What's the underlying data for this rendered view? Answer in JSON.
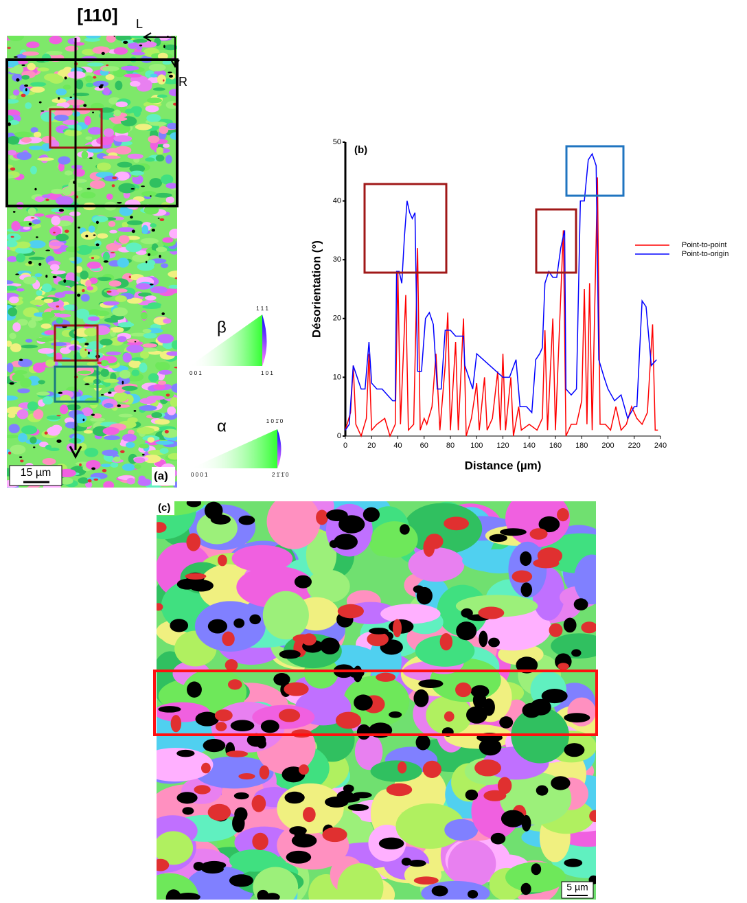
{
  "panel_a": {
    "direction": "[110]",
    "arrow_left": "L",
    "arrow_right": "R",
    "scale": "15 µm",
    "label": "(a)"
  },
  "legend_beta": {
    "symbol": "β",
    "top": "1 1 1",
    "left": "0 0 1",
    "right": "1 0 1"
  },
  "legend_alpha": {
    "symbol": "α",
    "top": "1 0 1̄ 0",
    "left": "0 0 0 1",
    "right": "2 1̄ 1̄ 0"
  },
  "panel_c": {
    "label": "(c)",
    "scale": "5 µm"
  },
  "chart_data": {
    "type": "line",
    "title": "(b)",
    "x_label": "Distance (µm)",
    "y_label": "Désorientation (°)",
    "xlim": [
      0,
      240
    ],
    "xticks": [
      0,
      20,
      40,
      60,
      80,
      100,
      120,
      140,
      160,
      180,
      200,
      220,
      240
    ],
    "ylim": [
      0,
      50
    ],
    "yticks": [
      0,
      10,
      20,
      30,
      40,
      50
    ],
    "series": [
      {
        "name": "Point-to-point",
        "color": "#ff0000",
        "x": [
          0,
          4,
          6,
          8,
          12,
          16,
          18,
          20,
          24,
          30,
          34,
          38,
          40,
          42,
          46,
          48,
          52,
          55,
          57,
          60,
          62,
          66,
          69,
          72,
          76,
          78,
          80,
          84,
          86,
          90,
          92,
          96,
          100,
          102,
          106,
          108,
          112,
          116,
          118,
          120,
          122,
          126,
          128,
          132,
          134,
          140,
          146,
          150,
          152,
          154,
          158,
          160,
          166,
          168,
          172,
          176,
          180,
          182,
          184,
          186,
          188,
          192,
          194,
          198,
          202,
          206,
          210,
          214,
          218,
          222,
          226,
          230,
          234,
          236,
          238
        ],
        "values": [
          1,
          4,
          12,
          2,
          0,
          3,
          14,
          1,
          2,
          3,
          0,
          2,
          28,
          2,
          24,
          1,
          2,
          32,
          1,
          3,
          2,
          5,
          14,
          1,
          12,
          21,
          1,
          16,
          1,
          20,
          0,
          3,
          9,
          1,
          10,
          1,
          3,
          11,
          1,
          14,
          1,
          10,
          0,
          5,
          1,
          2,
          1,
          3,
          18,
          1,
          20,
          1,
          35,
          0,
          2,
          2,
          6,
          25,
          2,
          26,
          1,
          44,
          2,
          2,
          1,
          5,
          1,
          2,
          5,
          3,
          2,
          4,
          19,
          1,
          1
        ]
      },
      {
        "name": "Point-to-origin",
        "color": "#0000ff",
        "x": [
          0,
          3,
          6,
          9,
          12,
          15,
          18,
          20,
          24,
          28,
          32,
          36,
          38,
          39,
          41,
          43,
          45,
          47,
          49,
          51,
          53,
          55,
          58,
          61,
          64,
          67,
          70,
          73,
          76,
          80,
          84,
          88,
          90,
          91,
          94,
          97,
          100,
          110,
          120,
          125,
          130,
          133,
          138,
          142,
          145,
          148,
          150,
          152,
          155,
          158,
          161,
          164,
          167,
          168,
          172,
          176,
          179,
          182,
          185,
          188,
          191,
          193,
          197,
          200,
          205,
          210,
          215,
          220,
          222,
          226,
          229,
          233,
          237
        ],
        "values": [
          1,
          2,
          12,
          10,
          8,
          8,
          16,
          9,
          8,
          8,
          7,
          6,
          6,
          28,
          28,
          26,
          34,
          40,
          38,
          37,
          38,
          11,
          11,
          20,
          21,
          19,
          8,
          8,
          18,
          18,
          17,
          17,
          17,
          12,
          10,
          8,
          14,
          12,
          10,
          10,
          13,
          5,
          5,
          4,
          13,
          14,
          15,
          26,
          28,
          27,
          27,
          32,
          35,
          8,
          7,
          8,
          40,
          40,
          47,
          48,
          46,
          13,
          10,
          8,
          6,
          7,
          3,
          5,
          5,
          23,
          22,
          12,
          13
        ]
      }
    ]
  }
}
